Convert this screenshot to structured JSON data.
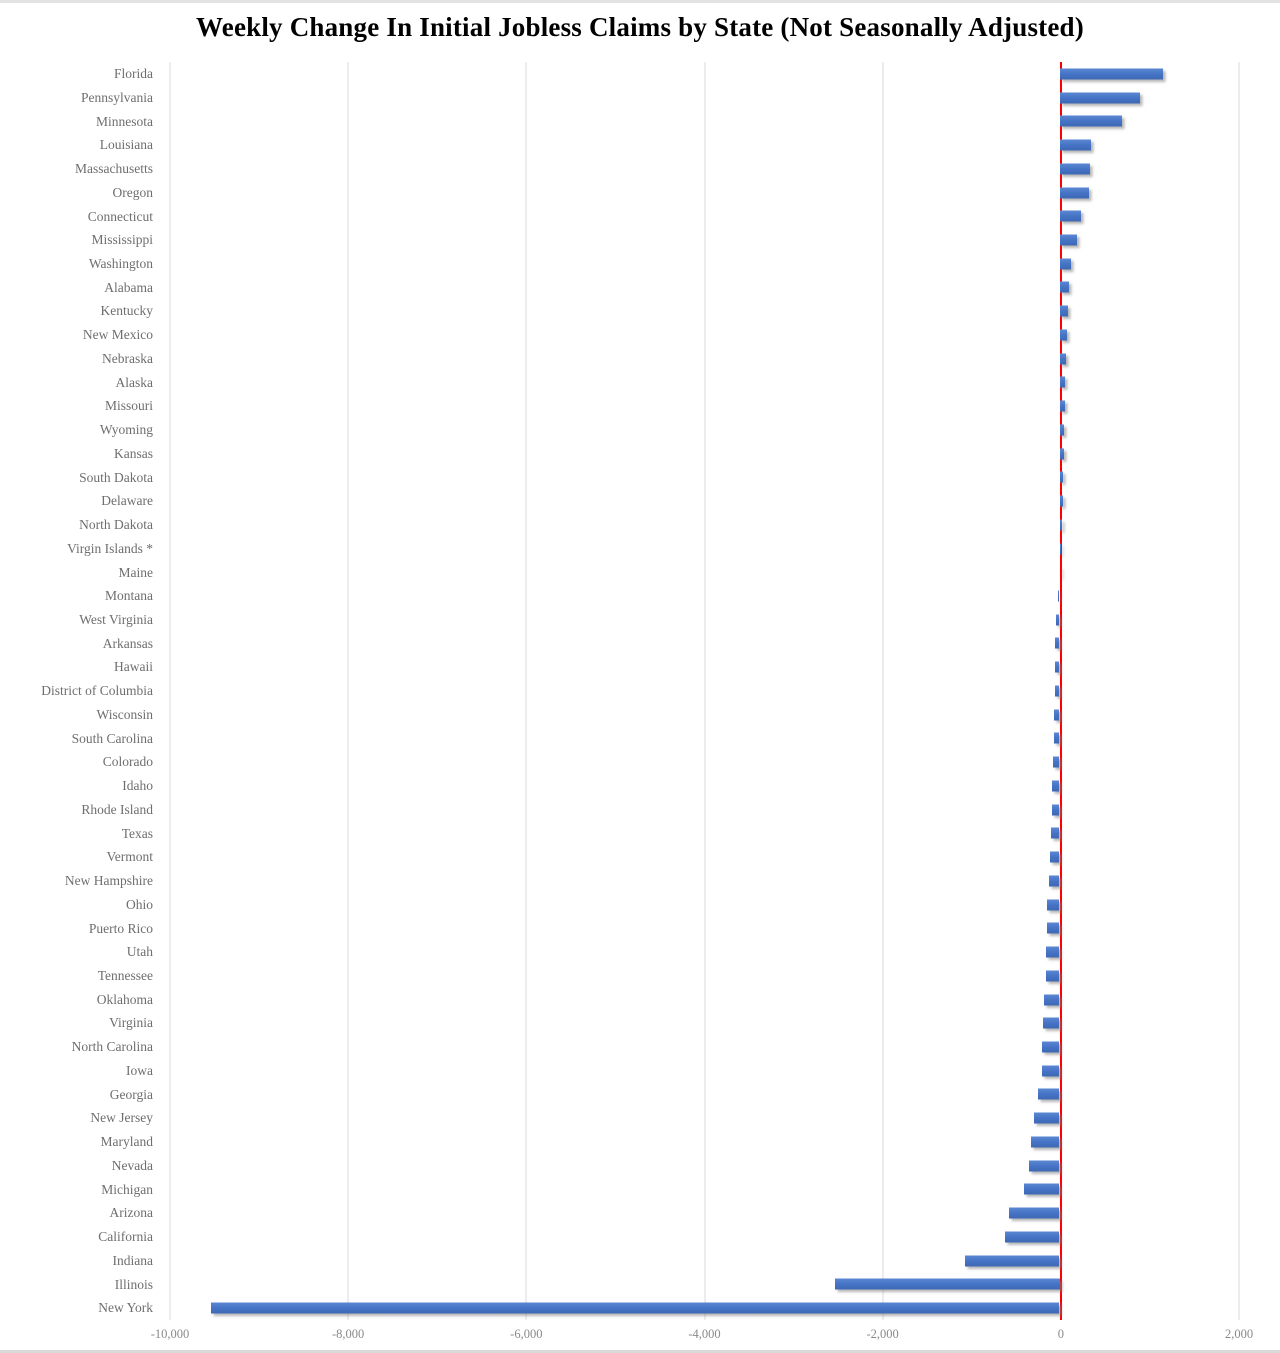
{
  "chart_data": {
    "type": "bar",
    "orientation": "horizontal",
    "title": "Weekly Change In Initial Jobless Claims by State (Not Seasonally Adjusted)",
    "categories": [
      "Florida",
      "Pennsylvania",
      "Minnesota",
      "Louisiana",
      "Massachusetts",
      "Oregon",
      "Connecticut",
      "Mississippi",
      "Washington",
      "Alabama",
      "Kentucky",
      "New Mexico",
      "Nebraska",
      "Alaska",
      "Missouri",
      "Wyoming",
      "Kansas",
      "South Dakota",
      "Delaware",
      "North Dakota",
      "Virgin Islands *",
      "Maine",
      "Montana",
      "West Virginia",
      "Arkansas",
      "Hawaii",
      "District of Columbia",
      "Wisconsin",
      "South Carolina",
      "Colorado",
      "Idaho",
      "Rhode Island",
      "Texas",
      "Vermont",
      "New Hampshire",
      "Ohio",
      "Puerto Rico",
      "Utah",
      "Tennessee",
      "Oklahoma",
      "Virginia",
      "North Carolina",
      "Iowa",
      "Georgia",
      "New Jersey",
      "Maryland",
      "Nevada",
      "Michigan",
      "Arizona",
      "California",
      "Indiana",
      "Illinois",
      "New York"
    ],
    "values": [
      1150,
      900,
      700,
      355,
      335,
      325,
      245,
      190,
      125,
      105,
      100,
      85,
      75,
      65,
      60,
      55,
      45,
      40,
      35,
      25,
      15,
      5,
      -20,
      -35,
      -45,
      -50,
      -55,
      -60,
      -65,
      -70,
      -80,
      -85,
      -95,
      -105,
      -115,
      -135,
      -140,
      -145,
      -150,
      -170,
      -180,
      -190,
      -200,
      -245,
      -285,
      -315,
      -340,
      -400,
      -565,
      -610,
      -1050,
      -2500,
      -9450
    ],
    "xlim": [
      -10000,
      2000
    ],
    "x_ticks": {
      "labels": [
        "-10,000",
        "-8,000",
        "-6,000",
        "-4,000",
        "-2,000",
        "0",
        "2,000"
      ],
      "values": [
        -10000,
        -8000,
        -6000,
        -4000,
        -2000,
        0,
        2000
      ]
    },
    "grid": "vertical-gridlines-on",
    "legend": "none",
    "colors": {
      "bar": "#4472C4",
      "bar_gradient_top": "#5b87d2",
      "bar_gradient_bottom": "#3e68b3",
      "zero_line": "#FF0000",
      "gridline": "#D9D9D9",
      "category_label": "#6e6e6e",
      "tick_label": "#8a8a8a",
      "title": "#000000"
    }
  }
}
